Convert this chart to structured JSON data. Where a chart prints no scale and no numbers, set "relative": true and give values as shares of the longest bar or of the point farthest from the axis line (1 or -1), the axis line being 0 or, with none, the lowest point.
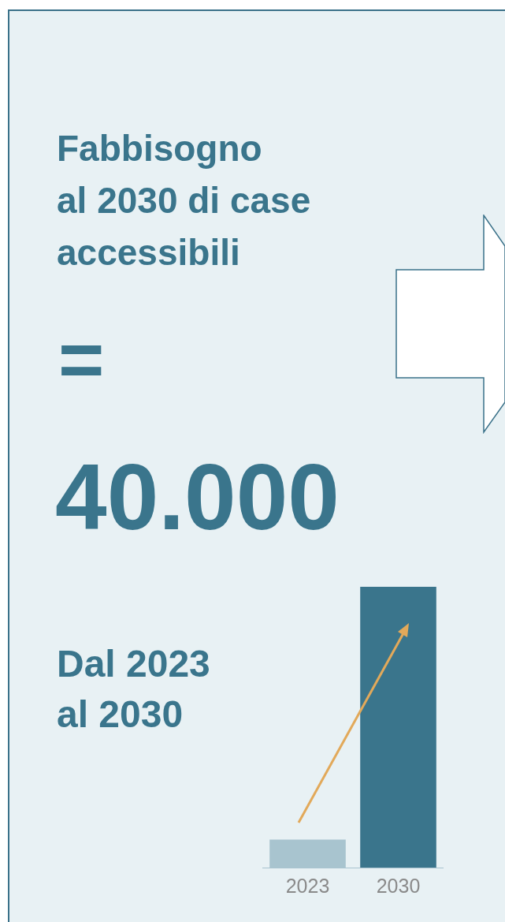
{
  "chart_data": {
    "type": "bar",
    "title": "Fabbisogno\nal 2030 di case\naccessibili",
    "annotations": [
      "=",
      "40.000",
      "Dal 2023\nal 2030"
    ],
    "categories": [
      "2023",
      "2030"
    ],
    "values": [
      0.1,
      1
    ],
    "colors": [
      "#a8c4cf",
      "#3a758c"
    ],
    "relative": true,
    "grid": false,
    "legend": false
  }
}
